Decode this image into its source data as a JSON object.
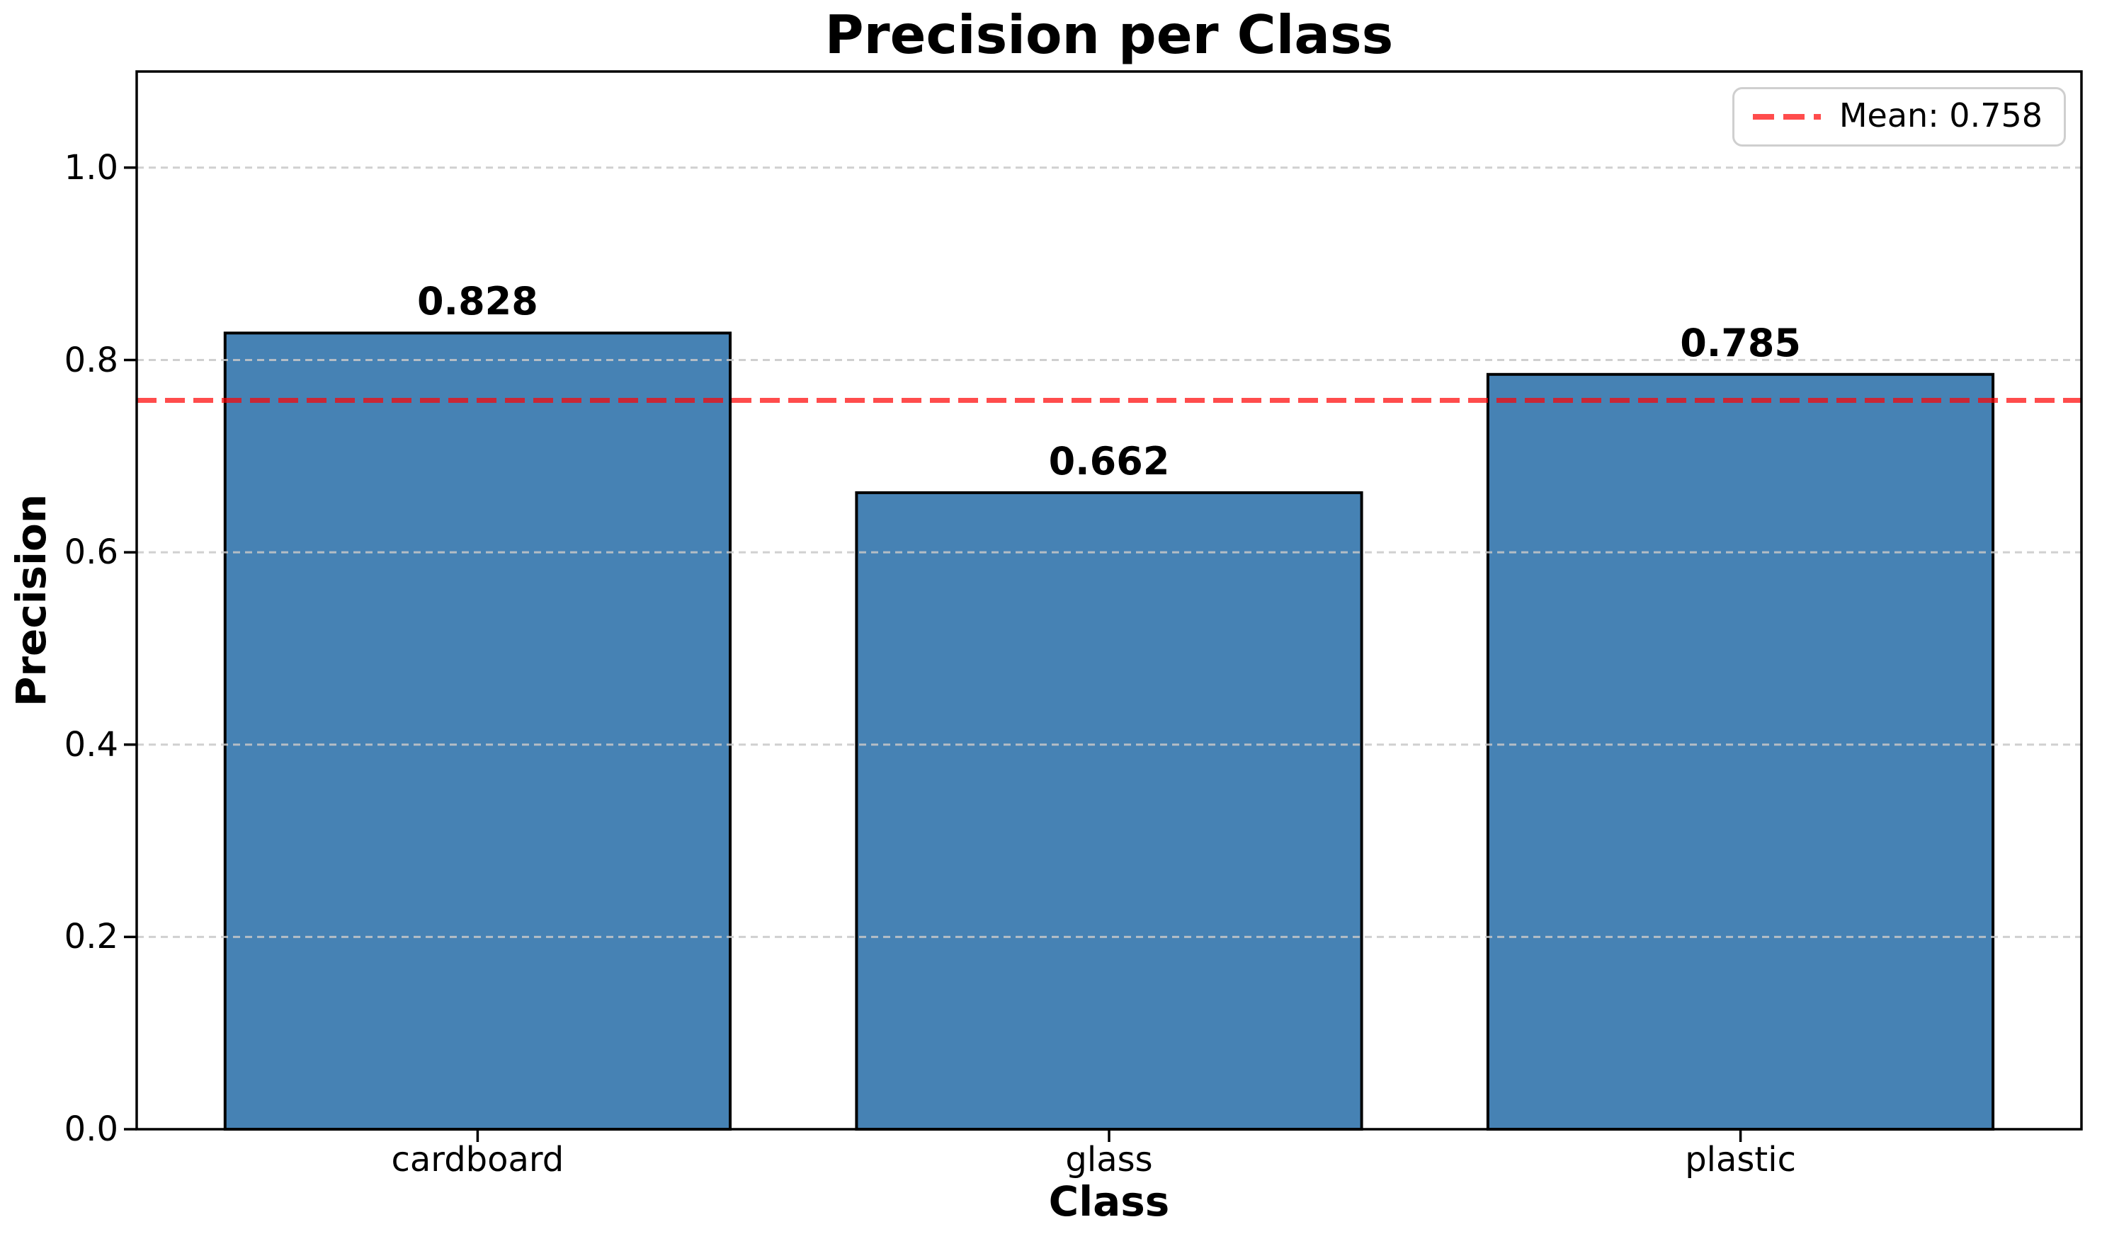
{
  "chart_data": {
    "type": "bar",
    "title": "Precision per Class",
    "xlabel": "Class",
    "ylabel": "Precision",
    "categories": [
      "cardboard",
      "glass",
      "plastic"
    ],
    "values": [
      0.828,
      0.662,
      0.785
    ],
    "bar_value_labels": [
      "0.828",
      "0.662",
      "0.785"
    ],
    "mean_line": {
      "value": 0.758,
      "legend_label": "Mean: 0.758",
      "color": "#ff0000",
      "alpha": 0.7,
      "style": "dashed"
    },
    "ylim": [
      0,
      1.1
    ],
    "yticks": [
      0.0,
      0.2,
      0.4,
      0.6,
      0.8,
      1.0
    ],
    "ytick_labels": [
      "0.0",
      "0.2",
      "0.4",
      "0.6",
      "0.8",
      "1.0"
    ],
    "grid": true,
    "grid_style": "dashed",
    "grid_color": "#c8c8c8",
    "legend_position": "upper right",
    "bar_color": "#4682B4",
    "bar_edge_color": "#000000"
  }
}
